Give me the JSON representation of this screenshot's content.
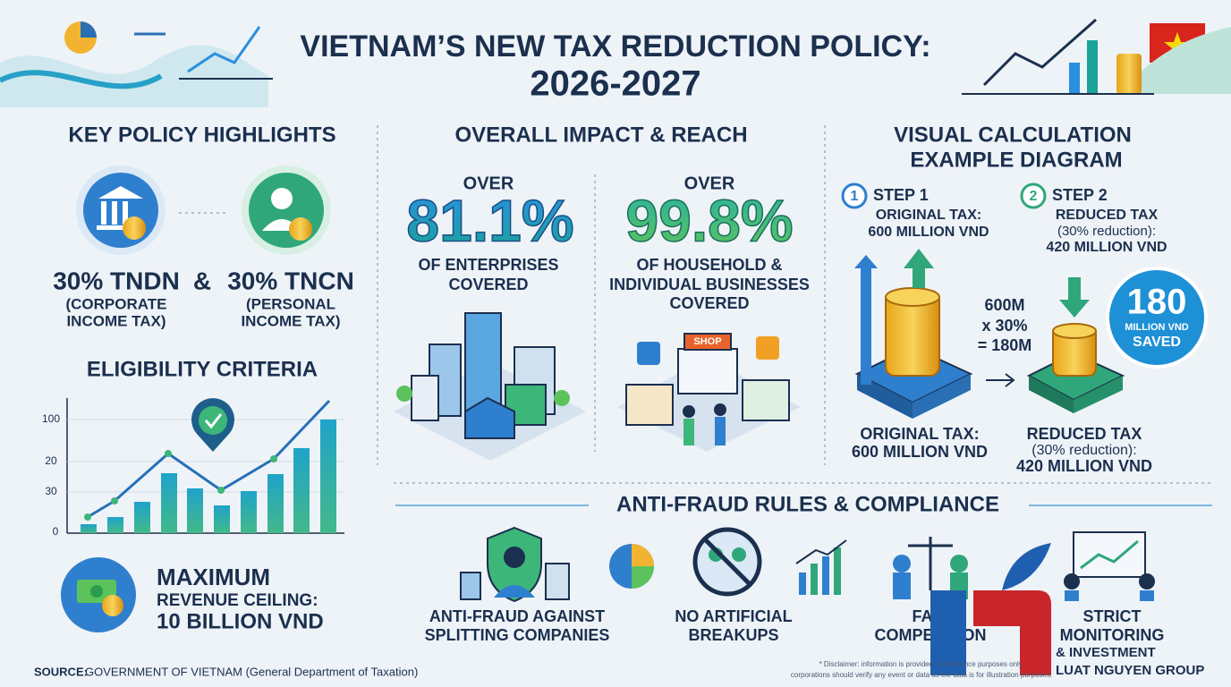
{
  "header": {
    "title_line1": "VIETNAM’S NEW TAX REDUCTION POLICY:",
    "title_line2": "2026-2027"
  },
  "highlights": {
    "heading": "KEY POLICY HIGHLIGHTS",
    "connector": "&",
    "items": [
      {
        "rate": "30% TNDN",
        "desc": [
          "(CORPORATE",
          "INCOME TAX)"
        ]
      },
      {
        "rate": "30% TNCN",
        "desc": [
          "(PERSONAL",
          "INCOME TAX)"
        ]
      }
    ]
  },
  "eligibility": {
    "heading": "ELIGIBILITY CRITERIA",
    "axis_labels": [
      "100",
      "20",
      "30",
      "0"
    ],
    "ceiling": [
      "MAXIMUM",
      "REVENUE CEILING:",
      "10 BILLION VND"
    ]
  },
  "impact": {
    "heading": "OVERALL IMPACT & REACH",
    "stats": [
      {
        "prefix": "OVER",
        "value": "81.1%",
        "desc": [
          "OF ENTERPRISES",
          "COVERED"
        ]
      },
      {
        "prefix": "OVER",
        "value": "99.8%",
        "desc": [
          "OF HOUSEHOLD &",
          "INDIVIDUAL BUSINESSES",
          "COVERED"
        ]
      }
    ],
    "shop_sign": "SHOP"
  },
  "calculation": {
    "heading": [
      "VISUAL CALCULATION",
      "EXAMPLE DIAGRAM"
    ],
    "steps": [
      {
        "num": "1",
        "label": "STEP 1",
        "lines": [
          "ORIGINAL TAX:",
          "600 MILLION VND"
        ]
      },
      {
        "num": "2",
        "label": "STEP 2",
        "lines": [
          "REDUCED TAX",
          "(30% reduction):",
          "420 MILLION VND"
        ]
      }
    ],
    "formula": [
      "600M",
      "x 30%",
      "= 180M"
    ],
    "badge": {
      "value": "180",
      "lines": [
        "MILLION VND",
        "SAVED"
      ]
    },
    "captions": [
      [
        "ORIGINAL TAX:",
        "600 MILLION VND"
      ],
      [
        "REDUCED TAX",
        "(30% reduction):",
        "420 MILLION VND"
      ]
    ]
  },
  "anti_fraud": {
    "heading": "ANTI-FRAUD RULES & COMPLIANCE",
    "items": [
      [
        "ANTI-FRAUD AGAINST",
        "SPLITTING COMPANIES"
      ],
      [
        "NO ARTIFICIAL",
        "BREAKUPS"
      ],
      [
        "FAIR",
        "COMPETITION"
      ],
      [
        "STRICT",
        "MONITORING"
      ]
    ]
  },
  "footer": {
    "source_label": "SOURCE:",
    "source_text": "GOVERNMENT OF VIETNAM (General Department of Taxation)",
    "disclaimer": [
      "* Disclaimer: information is provided for reference purposes only.",
      "corporations should verify any event or data as the data is for illustration purposes."
    ]
  },
  "logo": {
    "lines": [
      "& INVESTMENT",
      "LUAT NGUYEN GROUP"
    ]
  }
}
